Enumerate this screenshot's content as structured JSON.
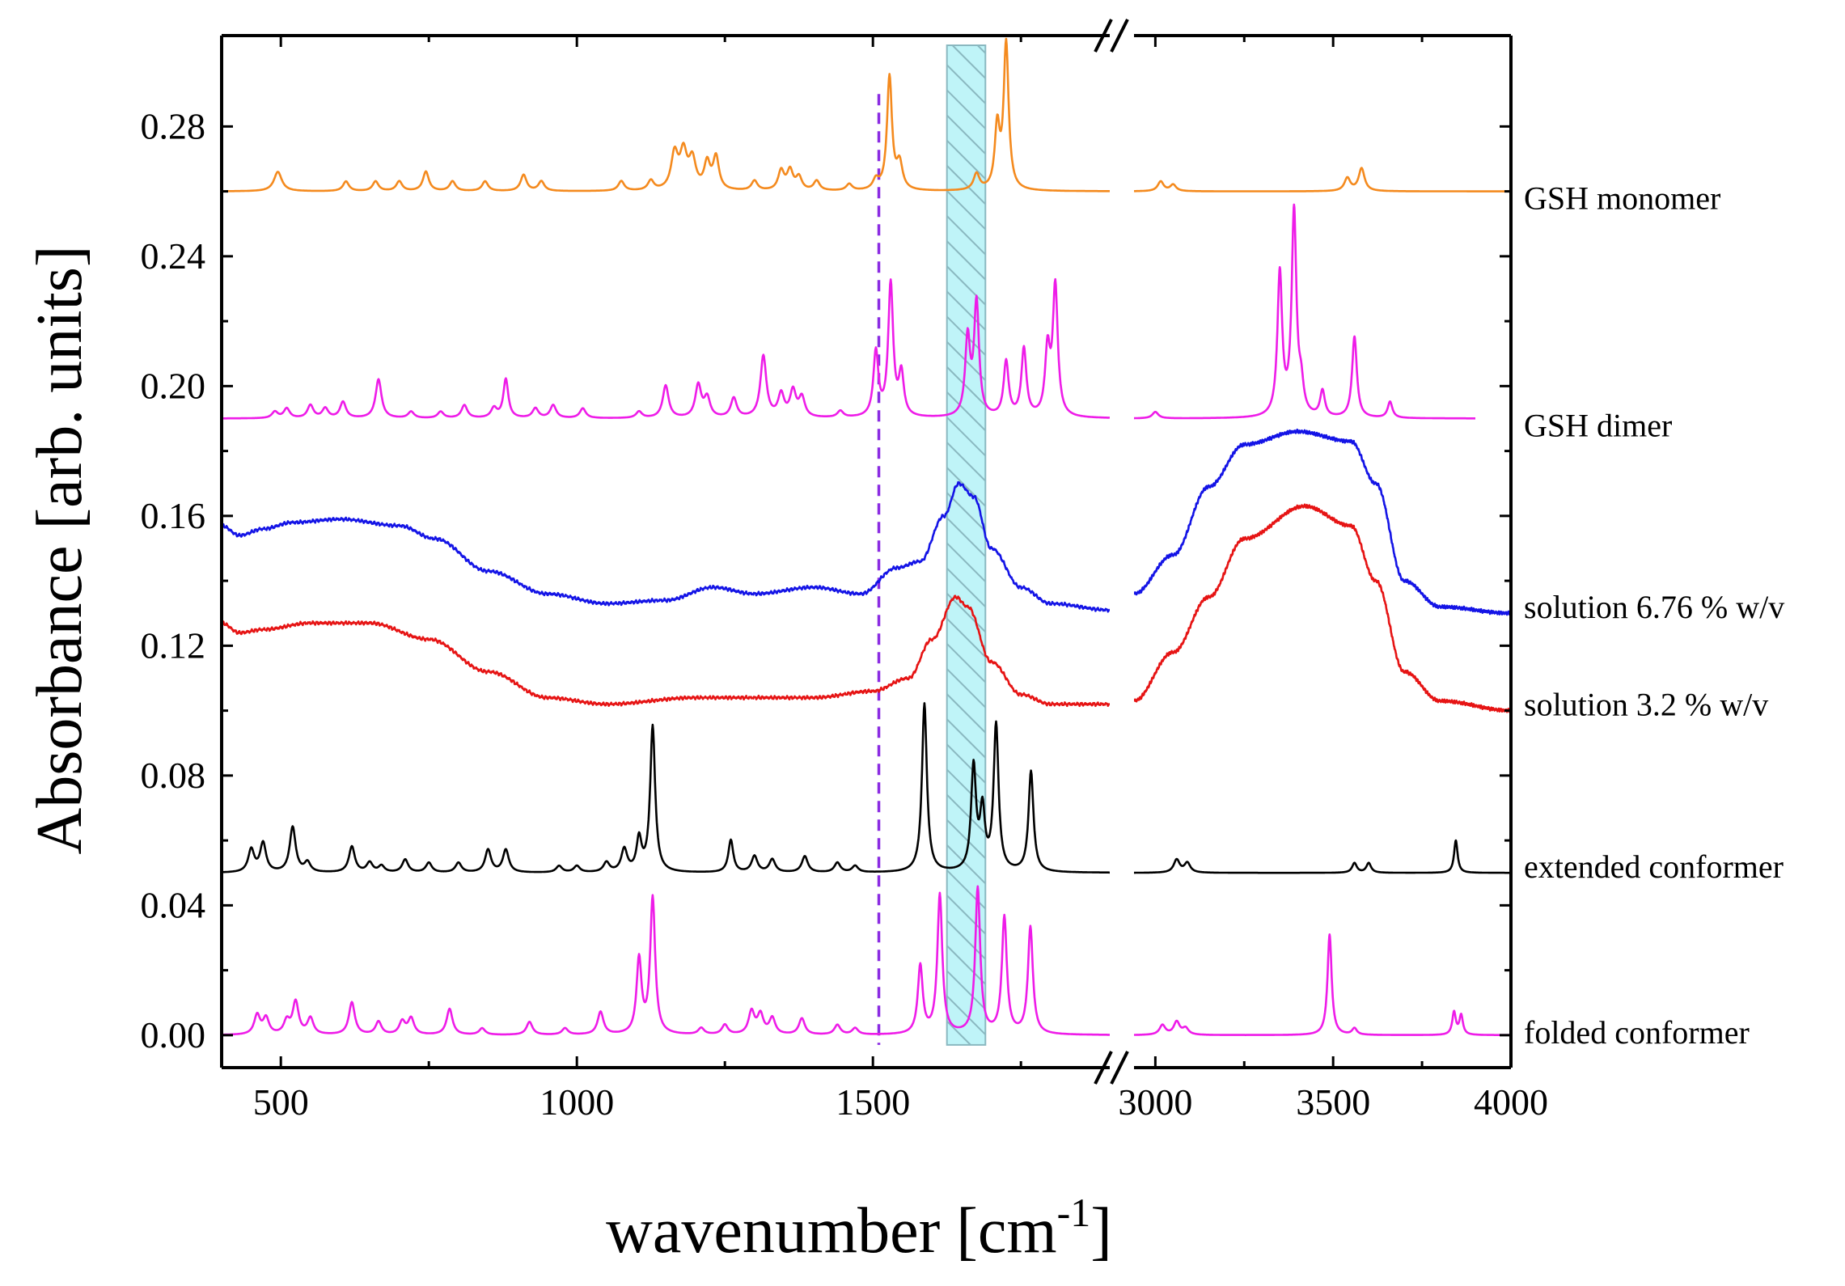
{
  "chart_data": {
    "type": "line",
    "title": "",
    "xlabel": "wavenumber [cm",
    "xlabel_superscript": "-1",
    "xlabel_close": "]",
    "ylabel": "Absorbance [arb. units]",
    "axis_break": "x",
    "x_segments": [
      {
        "xlim": [
          400,
          1900
        ],
        "ticks": [
          500,
          1000,
          1500
        ]
      },
      {
        "xlim": [
          2940,
          4000
        ],
        "ticks": [
          3000,
          3500,
          4000
        ]
      }
    ],
    "x_tick_labels": [
      "500",
      "1000",
      "1500",
      "3000",
      "3500",
      "4000"
    ],
    "ylim": [
      -0.01,
      0.308
    ],
    "y_ticks": [
      0.0,
      0.04,
      0.08,
      0.12,
      0.16,
      0.2,
      0.24,
      0.28
    ],
    "y_tick_labels": [
      "0.00",
      "0.04",
      "0.08",
      "0.12",
      "0.16",
      "0.20",
      "0.24",
      "0.28"
    ],
    "highlight_band": {
      "x_range": [
        1625,
        1690
      ],
      "color": "#bff4f8",
      "hatch_color": "#8ab8c0"
    },
    "marker_line": {
      "x": 1510,
      "color": "#8a2be2",
      "style": "dashed"
    },
    "series": [
      {
        "name": "GSH monomer",
        "color": "#f48a1e",
        "baseline": 0.26,
        "x_end": 4000,
        "peaks": [
          [
            495,
            0.006,
            8
          ],
          [
            610,
            0.003,
            6
          ],
          [
            660,
            0.003,
            6
          ],
          [
            700,
            0.003,
            6
          ],
          [
            745,
            0.006,
            6
          ],
          [
            790,
            0.003,
            6
          ],
          [
            845,
            0.003,
            6
          ],
          [
            910,
            0.005,
            6
          ],
          [
            940,
            0.003,
            6
          ],
          [
            1075,
            0.003,
            6
          ],
          [
            1125,
            0.003,
            6
          ],
          [
            1165,
            0.011,
            7
          ],
          [
            1180,
            0.011,
            7
          ],
          [
            1195,
            0.009,
            7
          ],
          [
            1220,
            0.008,
            6
          ],
          [
            1235,
            0.01,
            6
          ],
          [
            1300,
            0.003,
            6
          ],
          [
            1345,
            0.006,
            6
          ],
          [
            1360,
            0.006,
            6
          ],
          [
            1375,
            0.004,
            6
          ],
          [
            1405,
            0.003,
            6
          ],
          [
            1460,
            0.002,
            6
          ],
          [
            1505,
            0.003,
            6
          ],
          [
            1528,
            0.035,
            5
          ],
          [
            1545,
            0.008,
            6
          ],
          [
            1675,
            0.005,
            6
          ],
          [
            1710,
            0.019,
            5
          ],
          [
            1725,
            0.045,
            5
          ],
          [
            3015,
            0.003,
            10
          ],
          [
            3050,
            0.002,
            10
          ],
          [
            3540,
            0.004,
            10
          ],
          [
            3580,
            0.007,
            10
          ]
        ]
      },
      {
        "name": "GSH dimer",
        "color": "#ee1ce8",
        "baseline": 0.19,
        "x_end": 3900,
        "peaks": [
          [
            490,
            0.002,
            6
          ],
          [
            510,
            0.003,
            6
          ],
          [
            550,
            0.004,
            6
          ],
          [
            575,
            0.003,
            6
          ],
          [
            605,
            0.005,
            6
          ],
          [
            665,
            0.012,
            6
          ],
          [
            720,
            0.002,
            6
          ],
          [
            770,
            0.002,
            6
          ],
          [
            810,
            0.004,
            6
          ],
          [
            860,
            0.003,
            6
          ],
          [
            880,
            0.012,
            5
          ],
          [
            930,
            0.003,
            6
          ],
          [
            960,
            0.004,
            6
          ],
          [
            1010,
            0.003,
            6
          ],
          [
            1105,
            0.002,
            6
          ],
          [
            1150,
            0.01,
            6
          ],
          [
            1205,
            0.01,
            6
          ],
          [
            1220,
            0.006,
            6
          ],
          [
            1265,
            0.006,
            6
          ],
          [
            1315,
            0.019,
            6
          ],
          [
            1345,
            0.007,
            6
          ],
          [
            1365,
            0.008,
            6
          ],
          [
            1380,
            0.006,
            6
          ],
          [
            1445,
            0.002,
            6
          ],
          [
            1505,
            0.02,
            5
          ],
          [
            1530,
            0.041,
            5
          ],
          [
            1548,
            0.013,
            5
          ],
          [
            1660,
            0.024,
            5
          ],
          [
            1675,
            0.035,
            5
          ],
          [
            1725,
            0.017,
            5
          ],
          [
            1755,
            0.021,
            5
          ],
          [
            1795,
            0.02,
            5
          ],
          [
            1808,
            0.04,
            5
          ],
          [
            3000,
            0.002,
            10
          ],
          [
            3350,
            0.044,
            8
          ],
          [
            3390,
            0.063,
            8
          ],
          [
            3410,
            0.008,
            8
          ],
          [
            3470,
            0.008,
            8
          ],
          [
            3560,
            0.025,
            8
          ],
          [
            3660,
            0.005,
            8
          ]
        ]
      },
      {
        "name": "solution 6.76 % w/v",
        "color": "#1414e6",
        "baseline": 0.13,
        "x_end": 4000,
        "anchors": [
          [
            400,
            0.157
          ],
          [
            430,
            0.154
          ],
          [
            470,
            0.156
          ],
          [
            520,
            0.158
          ],
          [
            600,
            0.159
          ],
          [
            700,
            0.157
          ],
          [
            760,
            0.153
          ],
          [
            850,
            0.143
          ],
          [
            950,
            0.136
          ],
          [
            1050,
            0.133
          ],
          [
            1150,
            0.134
          ],
          [
            1230,
            0.138
          ],
          [
            1300,
            0.136
          ],
          [
            1400,
            0.138
          ],
          [
            1480,
            0.136
          ],
          [
            1540,
            0.144
          ],
          [
            1580,
            0.146
          ],
          [
            1620,
            0.16
          ],
          [
            1645,
            0.17
          ],
          [
            1670,
            0.166
          ],
          [
            1700,
            0.15
          ],
          [
            1750,
            0.138
          ],
          [
            1800,
            0.133
          ],
          [
            1900,
            0.131
          ],
          [
            2940,
            0.136
          ],
          [
            3050,
            0.148
          ],
          [
            3150,
            0.169
          ],
          [
            3250,
            0.182
          ],
          [
            3400,
            0.186
          ],
          [
            3550,
            0.183
          ],
          [
            3620,
            0.17
          ],
          [
            3700,
            0.14
          ],
          [
            3800,
            0.132
          ],
          [
            4000,
            0.13
          ]
        ]
      },
      {
        "name": "solution 3.2 % w/v",
        "color": "#e61414",
        "baseline": 0.1,
        "x_end": 4000,
        "anchors": [
          [
            400,
            0.127
          ],
          [
            430,
            0.124
          ],
          [
            470,
            0.125
          ],
          [
            550,
            0.127
          ],
          [
            650,
            0.127
          ],
          [
            750,
            0.122
          ],
          [
            850,
            0.112
          ],
          [
            950,
            0.104
          ],
          [
            1050,
            0.102
          ],
          [
            1200,
            0.104
          ],
          [
            1400,
            0.104
          ],
          [
            1500,
            0.106
          ],
          [
            1560,
            0.11
          ],
          [
            1600,
            0.122
          ],
          [
            1640,
            0.135
          ],
          [
            1660,
            0.132
          ],
          [
            1700,
            0.115
          ],
          [
            1750,
            0.105
          ],
          [
            1800,
            0.102
          ],
          [
            1900,
            0.102
          ],
          [
            2940,
            0.103
          ],
          [
            3050,
            0.118
          ],
          [
            3150,
            0.135
          ],
          [
            3250,
            0.153
          ],
          [
            3420,
            0.163
          ],
          [
            3550,
            0.157
          ],
          [
            3620,
            0.14
          ],
          [
            3700,
            0.112
          ],
          [
            3800,
            0.103
          ],
          [
            4000,
            0.1
          ]
        ]
      },
      {
        "name": "extended conformer",
        "color": "#000000",
        "baseline": 0.05,
        "x_end": 4000,
        "peaks": [
          [
            450,
            0.007,
            6
          ],
          [
            470,
            0.009,
            6
          ],
          [
            520,
            0.014,
            6
          ],
          [
            545,
            0.003,
            6
          ],
          [
            620,
            0.008,
            6
          ],
          [
            650,
            0.003,
            6
          ],
          [
            670,
            0.002,
            6
          ],
          [
            710,
            0.004,
            6
          ],
          [
            750,
            0.003,
            6
          ],
          [
            800,
            0.003,
            6
          ],
          [
            850,
            0.007,
            6
          ],
          [
            880,
            0.007,
            6
          ],
          [
            970,
            0.002,
            6
          ],
          [
            1000,
            0.002,
            6
          ],
          [
            1050,
            0.003,
            6
          ],
          [
            1080,
            0.007,
            6
          ],
          [
            1105,
            0.01,
            5
          ],
          [
            1128,
            0.045,
            5
          ],
          [
            1260,
            0.01,
            5
          ],
          [
            1300,
            0.005,
            6
          ],
          [
            1330,
            0.004,
            6
          ],
          [
            1385,
            0.005,
            6
          ],
          [
            1440,
            0.003,
            6
          ],
          [
            1470,
            0.002,
            6
          ],
          [
            1587,
            0.052,
            5
          ],
          [
            1670,
            0.032,
            5
          ],
          [
            1685,
            0.018,
            5
          ],
          [
            1708,
            0.045,
            5
          ],
          [
            1767,
            0.031,
            5
          ],
          [
            3060,
            0.004,
            10
          ],
          [
            3090,
            0.003,
            10
          ],
          [
            3560,
            0.003,
            8
          ],
          [
            3600,
            0.003,
            8
          ],
          [
            3845,
            0.01,
            6
          ]
        ]
      },
      {
        "name": "folded conformer",
        "color": "#ee1ce8",
        "baseline": 0.0,
        "x_end": 4000,
        "peaks": [
          [
            460,
            0.006,
            6
          ],
          [
            475,
            0.005,
            6
          ],
          [
            510,
            0.004,
            6
          ],
          [
            525,
            0.01,
            6
          ],
          [
            550,
            0.005,
            6
          ],
          [
            620,
            0.01,
            6
          ],
          [
            665,
            0.004,
            6
          ],
          [
            705,
            0.004,
            6
          ],
          [
            720,
            0.005,
            6
          ],
          [
            785,
            0.008,
            6
          ],
          [
            840,
            0.002,
            6
          ],
          [
            920,
            0.004,
            6
          ],
          [
            980,
            0.002,
            6
          ],
          [
            1040,
            0.007,
            6
          ],
          [
            1105,
            0.023,
            5
          ],
          [
            1128,
            0.042,
            5
          ],
          [
            1210,
            0.002,
            6
          ],
          [
            1250,
            0.003,
            6
          ],
          [
            1295,
            0.007,
            6
          ],
          [
            1310,
            0.006,
            6
          ],
          [
            1330,
            0.005,
            6
          ],
          [
            1380,
            0.005,
            6
          ],
          [
            1440,
            0.003,
            6
          ],
          [
            1470,
            0.002,
            6
          ],
          [
            1580,
            0.021,
            5
          ],
          [
            1613,
            0.043,
            5
          ],
          [
            1677,
            0.045,
            5
          ],
          [
            1722,
            0.036,
            5
          ],
          [
            1766,
            0.033,
            5
          ],
          [
            3020,
            0.003,
            10
          ],
          [
            3060,
            0.004,
            10
          ],
          [
            3085,
            0.002,
            10
          ],
          [
            3490,
            0.031,
            7
          ],
          [
            3560,
            0.002,
            8
          ],
          [
            3840,
            0.007,
            6
          ],
          [
            3860,
            0.006,
            6
          ]
        ]
      }
    ]
  }
}
